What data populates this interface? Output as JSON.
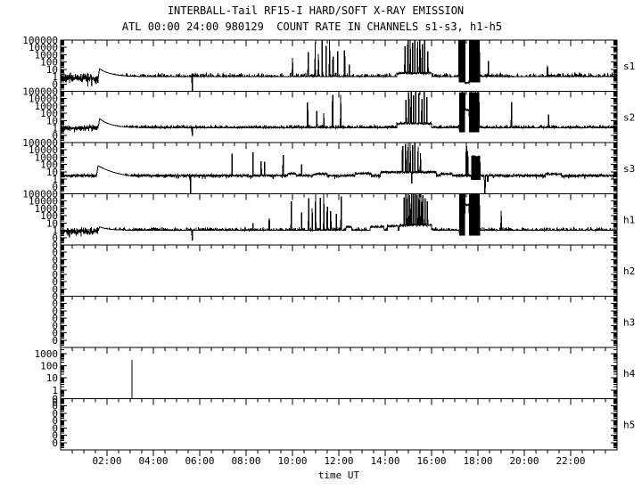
{
  "header": {
    "title": "INTERBALL-Tail RF15-I HARD/SOFT X-RAY EMISSION",
    "subtitle": "ATL 00:00 24:00 980129  COUNT RATE IN CHANNELS s1-s3, h1-h5"
  },
  "chart_data": {
    "type": "line",
    "title": "INTERBALL-Tail RF15-I HARD/SOFT X-RAY EMISSION",
    "subtitle": "ATL 00:00 24:00 980129  COUNT RATE IN CHANNELS s1-s3, h1-h5",
    "x_axis": {
      "label": "time UT",
      "range_hours": [
        0,
        24
      ],
      "major_tick_hours": 2,
      "minor_tick_hours": 0.5,
      "tick_labels": [
        "02:00",
        "04:00",
        "06:00",
        "08:00",
        "10:00",
        "12:00",
        "14:00",
        "16:00",
        "18:00",
        "20:00",
        "22:00"
      ]
    },
    "y_axis": {
      "scale": "log",
      "grid": false
    },
    "panels": [
      {
        "id": "s1",
        "right_label": "s1",
        "seed": 1,
        "y_tick_labels": [
          "100000",
          "10000",
          "1000",
          "100",
          "10",
          "1",
          "0"
        ],
        "top_decade": 5,
        "decades_span": 7,
        "baseline_counts": 0.7,
        "noise_decades": 0.75,
        "dip_chance": 0.05,
        "dip_depth": 1.2,
        "bumps": [
          {
            "t": 1.62,
            "peak_counts": 12,
            "decay_h": 0.5
          }
        ],
        "plateaus": [
          {
            "t0": 14.5,
            "t1": 16.0,
            "counts": 3
          }
        ],
        "spikes_t_counts": [
          [
            10.0,
            300
          ],
          [
            10.68,
            2000
          ],
          [
            10.98,
            40000
          ],
          [
            11.12,
            1200
          ],
          [
            11.28,
            80000
          ],
          [
            11.45,
            15000
          ],
          [
            11.6,
            100000
          ],
          [
            11.75,
            500
          ],
          [
            11.95,
            2800
          ],
          [
            12.25,
            3500
          ],
          [
            12.45,
            40
          ],
          [
            14.85,
            12000
          ],
          [
            14.98,
            90000
          ],
          [
            15.08,
            100000
          ],
          [
            15.18,
            40000
          ],
          [
            15.28,
            100000
          ],
          [
            15.4,
            60000
          ],
          [
            15.5,
            100000
          ],
          [
            15.6,
            25000
          ],
          [
            15.7,
            100000
          ],
          [
            15.84,
            2500
          ],
          [
            18.45,
            120
          ],
          [
            21.0,
            30
          ]
        ],
        "blocks": [
          {
            "t0": 17.17,
            "t1": 17.44,
            "top_counts": 100000
          },
          {
            "t0": 17.63,
            "t1": 18.08,
            "top_counts": 100000
          }
        ],
        "segments": [
          {
            "t0": 17.44,
            "t1": 17.63,
            "counts": 0.15
          }
        ],
        "dropouts": [
          {
            "t": 5.68,
            "counts": 0.01
          }
        ]
      },
      {
        "id": "s2",
        "right_label": "s2",
        "seed": 2,
        "y_tick_labels": [
          "100000",
          "10000",
          "1000",
          "100",
          "10",
          "1",
          "0"
        ],
        "top_decade": 5,
        "decades_span": 7,
        "baseline_counts": 1.0,
        "noise_decades": 0.45,
        "dip_chance": 0.04,
        "dip_depth": 0.9,
        "bumps": [
          {
            "t": 1.62,
            "peak_counts": 18,
            "decay_h": 0.5
          }
        ],
        "plateaus": [
          {
            "t0": 14.5,
            "t1": 16.0,
            "counts": 4
          }
        ],
        "spikes_t_counts": [
          [
            10.65,
            2500
          ],
          [
            11.05,
            180
          ],
          [
            11.35,
            90
          ],
          [
            11.73,
            30000
          ],
          [
            12.08,
            30000
          ],
          [
            14.9,
            6000
          ],
          [
            15.02,
            50000
          ],
          [
            15.12,
            80000
          ],
          [
            15.22,
            25000
          ],
          [
            15.32,
            80000
          ],
          [
            15.45,
            50000
          ],
          [
            15.58,
            8000
          ],
          [
            15.68,
            80000
          ],
          [
            15.8,
            15000
          ],
          [
            19.45,
            3000
          ],
          [
            21.05,
            60
          ]
        ],
        "blocks": [
          {
            "t0": 17.2,
            "t1": 17.44,
            "top_counts": 70000
          },
          {
            "t0": 17.63,
            "t1": 18.05,
            "top_counts": 70000
          }
        ],
        "segments": [
          {
            "t0": 17.44,
            "t1": 17.63,
            "counts": 300
          }
        ],
        "dropouts": [
          {
            "t": 5.68,
            "counts": 0.1
          }
        ]
      },
      {
        "id": "s3",
        "right_label": "s3",
        "seed": 3,
        "y_tick_labels": [
          "100000",
          "10000",
          "1000",
          "100",
          "10",
          "1",
          "0"
        ],
        "top_decade": 5,
        "decades_span": 7,
        "baseline_counts": 3.0,
        "noise_decades": 0.22,
        "dip_chance": 0.03,
        "dip_depth": 0.5,
        "bumps": [
          {
            "t": 1.55,
            "peak_counts": 70,
            "decay_h": 1.0
          }
        ],
        "plateaus": [
          {
            "t0": 9.8,
            "t1": 10.15,
            "counts": 6
          },
          {
            "t0": 10.9,
            "t1": 11.5,
            "counts": 5
          },
          {
            "t0": 12.7,
            "t1": 13.4,
            "counts": 6
          },
          {
            "t0": 13.8,
            "t1": 16.2,
            "counts": 9
          },
          {
            "t0": 16.4,
            "t1": 16.9,
            "counts": 5
          },
          {
            "t0": 20.9,
            "t1": 21.6,
            "counts": 5
          }
        ],
        "spikes_t_counts": [
          [
            7.4,
            2500
          ],
          [
            8.3,
            4000
          ],
          [
            8.65,
            250
          ],
          [
            8.8,
            200
          ],
          [
            9.6,
            1800
          ],
          [
            10.4,
            90
          ],
          [
            14.75,
            30000
          ],
          [
            14.88,
            60000
          ],
          [
            14.98,
            25000
          ],
          [
            15.08,
            80000
          ],
          [
            15.18,
            40000
          ],
          [
            15.28,
            80000
          ],
          [
            15.42,
            25000
          ],
          [
            15.52,
            3000
          ],
          [
            17.5,
            30000
          ],
          [
            17.56,
            6000
          ]
        ],
        "blocks": [
          {
            "t0": 17.72,
            "t1": 18.1,
            "top_counts": 1500
          }
        ],
        "segments": [],
        "dropouts": [
          {
            "t": 5.6,
            "counts": 0.01
          },
          {
            "t": 15.15,
            "counts": 0.3
          },
          {
            "t": 18.3,
            "counts": 0.01
          },
          {
            "t": 18.42,
            "counts": 0.5
          }
        ]
      },
      {
        "id": "h1",
        "right_label": "h1",
        "seed": 4,
        "y_tick_labels": [
          "100000",
          "10000",
          "1000",
          "100",
          "10",
          "1",
          "0"
        ],
        "top_decade": 5,
        "decades_span": 7,
        "baseline_counts": 0.8,
        "noise_decades": 0.6,
        "dip_chance": 0.05,
        "dip_depth": 1.0,
        "bumps": [
          {
            "t": 1.62,
            "peak_counts": 3,
            "decay_h": 0.4
          }
        ],
        "plateaus": [
          {
            "t0": 12.3,
            "t1": 12.55,
            "counts": 3
          },
          {
            "t0": 13.35,
            "t1": 13.95,
            "counts": 3
          },
          {
            "t0": 14.1,
            "t1": 14.55,
            "counts": 4
          },
          {
            "t0": 14.6,
            "t1": 16.0,
            "counts": 5
          }
        ],
        "spikes_t_counts": [
          [
            8.3,
            8
          ],
          [
            9.0,
            40
          ],
          [
            9.95,
            8000
          ],
          [
            10.4,
            250
          ],
          [
            10.7,
            20000
          ],
          [
            10.85,
            900
          ],
          [
            11.0,
            80000
          ],
          [
            11.2,
            25000
          ],
          [
            11.35,
            100000
          ],
          [
            11.5,
            1500
          ],
          [
            11.65,
            350
          ],
          [
            11.9,
            150
          ],
          [
            12.1,
            40000
          ],
          [
            14.82,
            30000
          ],
          [
            14.9,
            80000
          ],
          [
            14.98,
            100000
          ],
          [
            15.06,
            60000
          ],
          [
            15.14,
            100000
          ],
          [
            15.22,
            90000
          ],
          [
            15.3,
            100000
          ],
          [
            15.38,
            70000
          ],
          [
            15.46,
            100000
          ],
          [
            15.54,
            100000
          ],
          [
            15.62,
            60000
          ],
          [
            15.72,
            20000
          ],
          [
            15.82,
            8000
          ],
          [
            19.0,
            400
          ]
        ],
        "blocks": [
          {
            "t0": 17.2,
            "t1": 17.44,
            "top_counts": 100000
          },
          {
            "t0": 17.63,
            "t1": 18.08,
            "top_counts": 100000
          }
        ],
        "segments": [
          {
            "t0": 17.44,
            "t1": 17.63,
            "counts": 3000
          }
        ],
        "dropouts": [
          {
            "t": 5.68,
            "counts": 0.05
          }
        ]
      },
      {
        "id": "h2",
        "right_label": "h2",
        "seed": 5,
        "empty": true,
        "y_tick_labels": [
          "0",
          "0",
          "0",
          "0",
          "0",
          "0",
          "0"
        ],
        "top_decade": 5,
        "decades_span": 7
      },
      {
        "id": "h3",
        "right_label": "h3",
        "seed": 6,
        "empty": true,
        "y_tick_labels": [
          "0",
          "0",
          "0",
          "0",
          "0",
          "0",
          "0"
        ],
        "top_decade": 5,
        "decades_span": 7
      },
      {
        "id": "h4",
        "right_label": "h4",
        "seed": 7,
        "spike_only": true,
        "y_tick_labels": [
          "1000",
          "100",
          "10",
          "1",
          "0"
        ],
        "top_decade": 3.5,
        "decades_span": 4.2,
        "spikes_t_counts": [
          [
            3.08,
            300
          ]
        ]
      },
      {
        "id": "h5",
        "right_label": "h5",
        "seed": 8,
        "empty": true,
        "y_tick_labels": [
          "0",
          "0",
          "0",
          "0",
          "0",
          "0",
          "0"
        ],
        "top_decade": 5,
        "decades_span": 7
      }
    ]
  }
}
